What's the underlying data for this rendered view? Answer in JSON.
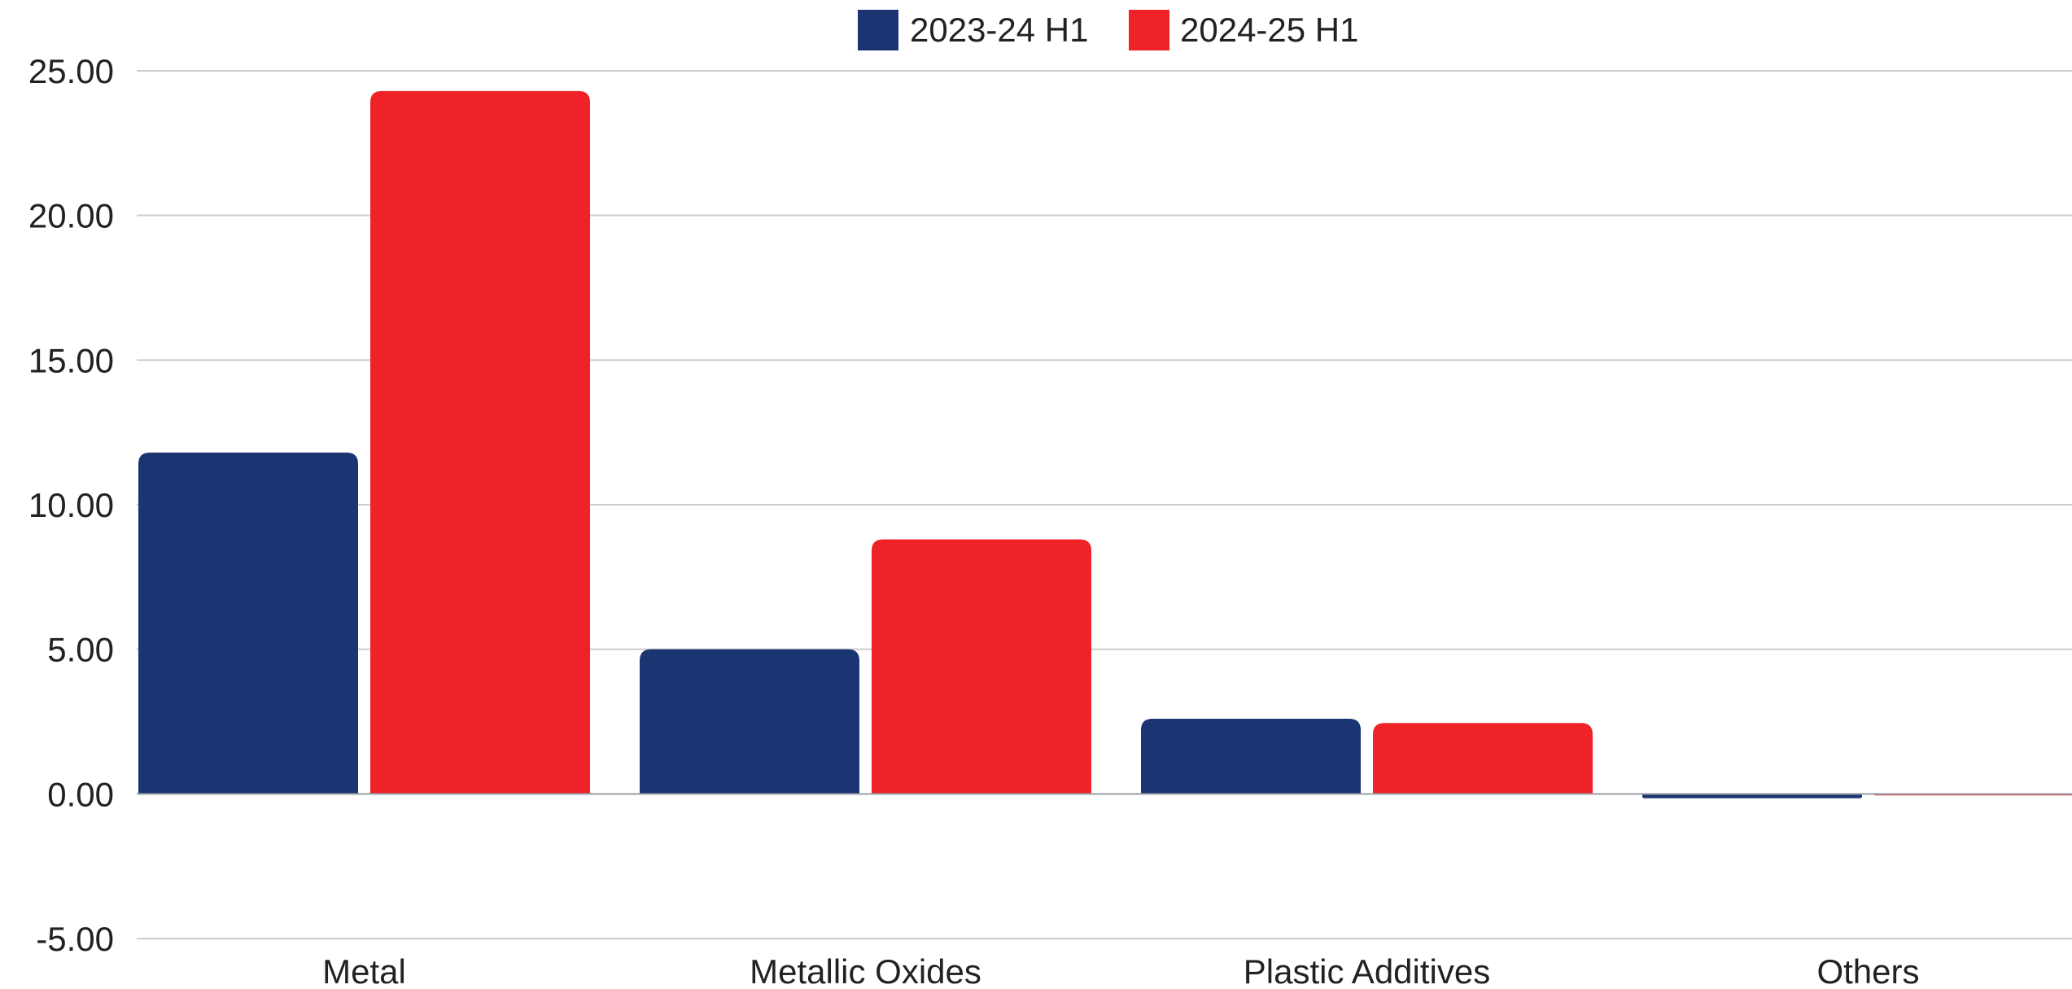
{
  "chart_data": {
    "type": "bar",
    "title": "",
    "xlabel": "",
    "ylabel": "",
    "categories": [
      "Metal",
      "Metallic Oxides",
      "Plastic Additives",
      "Others"
    ],
    "series": [
      {
        "name": "2023-24 H1",
        "color": "#1b3472",
        "values": [
          11.8,
          5.0,
          2.6,
          -0.15
        ]
      },
      {
        "name": "2024-25 H1",
        "color": "#ee2227",
        "values": [
          24.3,
          8.8,
          2.45,
          -0.05
        ]
      }
    ],
    "ylim": [
      -5,
      25
    ],
    "yticks": [
      "25.00",
      "20.00",
      "15.00",
      "10.00",
      "5.00",
      "0.00",
      "-5.00"
    ],
    "ytick_values": [
      25,
      20,
      15,
      10,
      5,
      0,
      -5
    ],
    "grid": true,
    "legend_position": "top-center"
  }
}
